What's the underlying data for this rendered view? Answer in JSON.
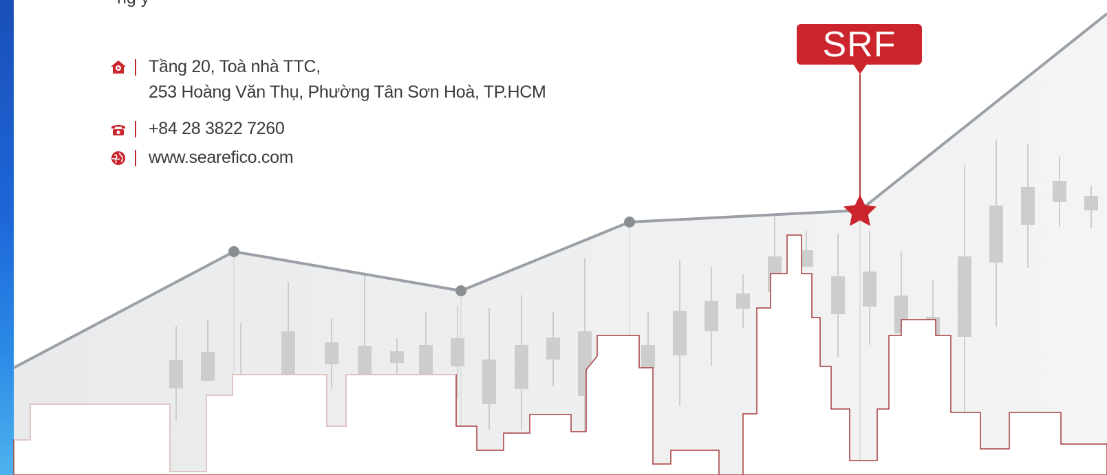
{
  "contact": {
    "cut_line": "ng y",
    "address_line1": "Tầng 20, Toà nhà TTC,",
    "address_line2": "253 Hoàng Văn Thụ, Phường Tân Sơn Hoà, TP.HCM",
    "phone": "+84 28 3822 7260",
    "website": "www.searefico.com",
    "icons": [
      "home-location-icon",
      "phone-icon",
      "globe-icon"
    ]
  },
  "badge": {
    "label": "SRF"
  },
  "colors": {
    "accent": "#cc242c",
    "line": "#9aa0a6",
    "candle": "#cfcfcf",
    "skyline": "#a83a3a"
  }
}
